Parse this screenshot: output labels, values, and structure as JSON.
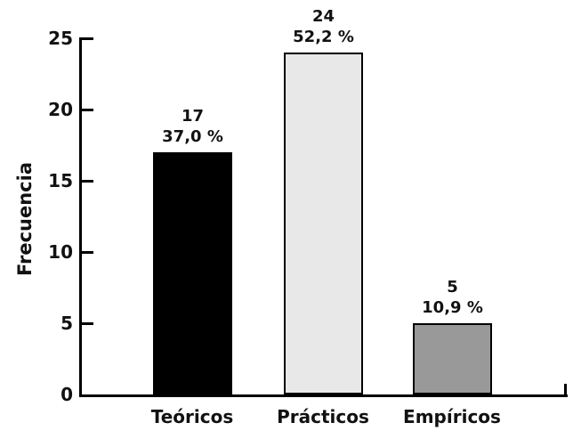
{
  "chart_data": {
    "type": "bar",
    "title": "",
    "xlabel": "",
    "ylabel": "Frecuencia",
    "categories": [
      "Teóricos",
      "Prácticos",
      "Empíricos"
    ],
    "values": [
      17,
      24,
      5
    ],
    "value_labels": [
      "17",
      "24",
      "5"
    ],
    "pct_labels": [
      "37,0 %",
      "52,2 %",
      "10,9 %"
    ],
    "bar_colors": [
      "#000000",
      "#e8e8e8",
      "#999999"
    ],
    "bar_border_color": "#000000",
    "ylim": [
      0,
      25
    ],
    "yticks": [
      0,
      5,
      10,
      15,
      20,
      25
    ],
    "grid": false,
    "legend": "none",
    "background_color": "#ffffff"
  }
}
